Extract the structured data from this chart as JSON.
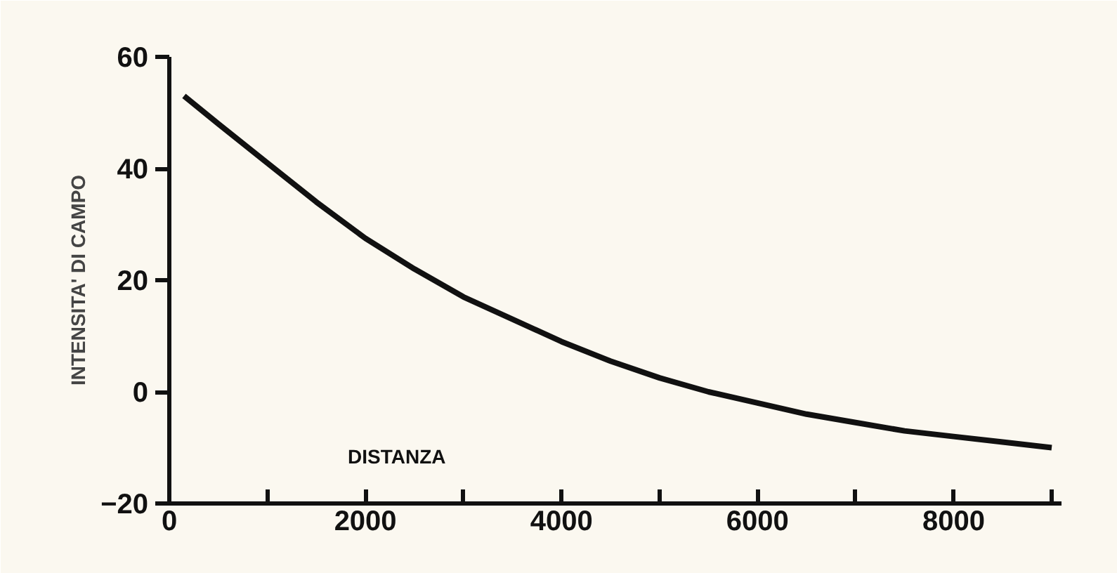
{
  "chart_data": {
    "type": "line",
    "xlabel": "DISTANZA",
    "ylabel": "INTENSITA' DI CAMPO",
    "x": [
      150,
      500,
      1000,
      1500,
      2000,
      2500,
      3000,
      3500,
      4000,
      4500,
      5000,
      5500,
      6000,
      6500,
      7000,
      7500,
      8000,
      8500,
      9000
    ],
    "series": [
      {
        "color": "#111111",
        "values": [
          53,
          48,
          41,
          34,
          27.5,
          22,
          17,
          13,
          9,
          5.5,
          2.5,
          0,
          -2,
          -4,
          -5.5,
          -7,
          -8,
          -9,
          -10
        ]
      }
    ],
    "xlim": [
      0,
      9100
    ],
    "ylim": [
      -20,
      60
    ],
    "xticks": [
      0,
      {
        "value": 1000,
        "label": null
      },
      2000,
      {
        "value": 3000,
        "label": null
      },
      4000,
      {
        "value": 5000,
        "label": null
      },
      6000,
      {
        "value": 7000,
        "label": null
      },
      8000,
      {
        "value": 9000,
        "label": null
      }
    ],
    "yticks": [
      -20,
      0,
      20,
      40,
      60
    ],
    "grid": false,
    "marker": "none",
    "line_style": "solid"
  }
}
